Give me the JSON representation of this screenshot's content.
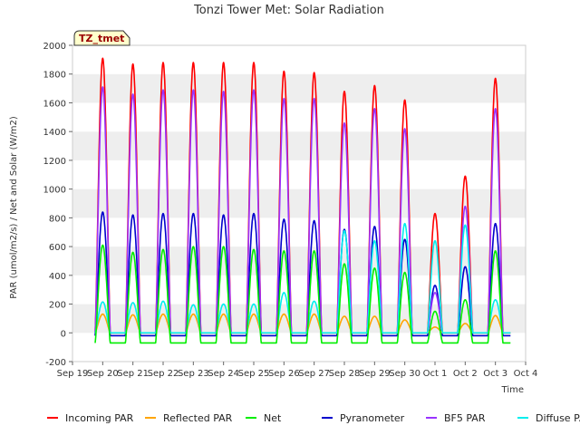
{
  "chart_data": {
    "type": "line",
    "title": "Tonzi Tower Met: Solar Radiation",
    "xlabel": "Time",
    "ylabel": "PAR (umol/m2/s) / Net and Solar (W/m2)",
    "ylim": [
      -200,
      2000
    ],
    "yticks": [
      "-200",
      "0",
      "200",
      "400",
      "600",
      "800",
      "1000",
      "1200",
      "1400",
      "1600",
      "1800",
      "2000"
    ],
    "xlim_days": [
      0,
      15
    ],
    "xticks": [
      "Sep 19",
      "Sep 20",
      "Sep 21",
      "Sep 22",
      "Sep 23",
      "Sep 24",
      "Sep 25",
      "Sep 26",
      "Sep 27",
      "Sep 28",
      "Sep 29",
      "Sep 30",
      "Oct 1",
      "Oct 2",
      "Oct 3",
      "Oct 4"
    ],
    "tag_label": "TZ_tmet",
    "grid": "horizontal bands",
    "legend_position": "bottom",
    "day_centers": [
      "Sep 20",
      "Sep 21",
      "Sep 22",
      "Sep 23",
      "Sep 24",
      "Sep 25",
      "Sep 26",
      "Sep 27",
      "Sep 28",
      "Sep 29",
      "Sep 30",
      "Oct 1",
      "Oct 2",
      "Oct 3"
    ],
    "series": [
      {
        "name": "Incoming PAR",
        "color": "#ff0000",
        "night": 0,
        "daily_peak": [
          1910,
          1870,
          1880,
          1880,
          1880,
          1880,
          1820,
          1810,
          1680,
          1720,
          1620,
          830,
          1090,
          1770
        ]
      },
      {
        "name": "Reflected PAR",
        "color": "#ffa500",
        "night": 0,
        "daily_peak": [
          130,
          125,
          130,
          130,
          130,
          130,
          130,
          130,
          115,
          115,
          90,
          40,
          65,
          120
        ]
      },
      {
        "name": "Net",
        "color": "#00ee00",
        "night": -70,
        "daily_peak": [
          610,
          560,
          580,
          600,
          600,
          580,
          570,
          570,
          480,
          450,
          420,
          150,
          230,
          570
        ]
      },
      {
        "name": "Pyranometer",
        "color": "#0000cc",
        "night": -20,
        "daily_peak": [
          840,
          820,
          830,
          830,
          820,
          830,
          790,
          780,
          720,
          740,
          650,
          330,
          460,
          760
        ]
      },
      {
        "name": "BF5 PAR",
        "color": "#9933ff",
        "night": 0,
        "daily_peak": [
          1710,
          1660,
          1690,
          1690,
          1680,
          1690,
          1630,
          1630,
          1460,
          1560,
          1420,
          280,
          880,
          1560
        ]
      },
      {
        "name": "Diffuse PAR",
        "color": "#00eeee",
        "night": 0,
        "daily_peak": [
          215,
          210,
          220,
          195,
          200,
          200,
          280,
          220,
          710,
          640,
          760,
          640,
          750,
          230
        ]
      }
    ]
  }
}
